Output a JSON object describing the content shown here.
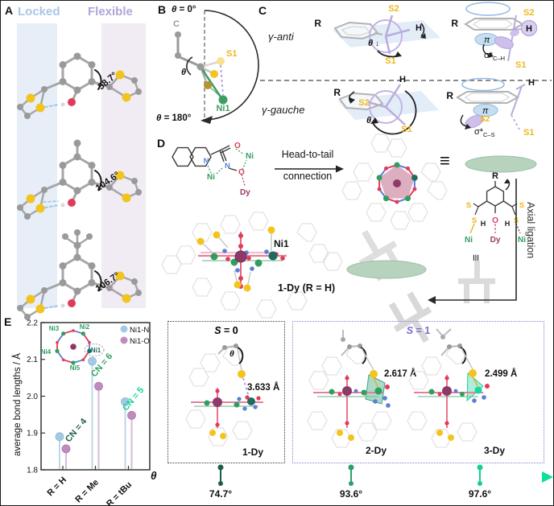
{
  "panelA": {
    "label": "A",
    "locked": "Locked",
    "flexible": "Flexible",
    "angles": [
      "58.7°",
      "104.6°",
      "106.7°"
    ],
    "locked_color": "#a9c6e8",
    "flexible_color": "#b2a5d8"
  },
  "panelB": {
    "label": "B",
    "theta": "θ",
    "top": "= 0°",
    "bottom": "= 180°",
    "carbon": "C",
    "s1": "S1",
    "ni1": "Ni1"
  },
  "panelC": {
    "label": "C",
    "anti": "γ-anti",
    "gauche": "γ-gauche",
    "r": "R",
    "s1": "S1",
    "s2": "S2",
    "h": "H",
    "theta": "θ",
    "down": "↓",
    "up": "↑",
    "pi": "π",
    "sigma": "σ*",
    "ch": "C–H",
    "cs": "C–S"
  },
  "panelD": {
    "label": "D",
    "head1": "Head-to-tail",
    "head2": "connection",
    "equiv": "≡",
    "axial": "Axial ligation",
    "ni1": "Ni1",
    "compound": "1-Dy (R = H)",
    "n": "N",
    "o": "O",
    "ni": "Ni",
    "dy": "Dy",
    "r": "R",
    "s": "S",
    "h": "H"
  },
  "panelE": {
    "label": "E",
    "ylabel": "average bond lengths / Å",
    "yticks": [
      "2.2",
      "2.1",
      "2.0",
      "1.9",
      "1.8"
    ],
    "xlabels": [
      "R = H",
      "R = Me",
      "R = tBu"
    ],
    "legend": [
      {
        "label": "Ni1-N",
        "color": "#a5c9e5"
      },
      {
        "label": "Ni1-O",
        "color": "#bf8cbf"
      }
    ],
    "cn": [
      {
        "text": "CN = 4",
        "color": "#1d6048"
      },
      {
        "text": "CN = 6",
        "color": "#2fa060"
      },
      {
        "text": "CN = 5",
        "color": "#16d39a"
      }
    ],
    "inset": {
      "ni1": "Ni1",
      "ni2": "Ni2",
      "ni3": "Ni3",
      "ni4": "Ni4",
      "ni5": "Ni5"
    }
  },
  "boxes": {
    "s0": {
      "s": "S",
      "val": " = 0",
      "theta": "θ",
      "distance": "3.633 Å",
      "name": "1-Dy"
    },
    "s1": {
      "s": "S",
      "val": " = 1",
      "accent": "#7a6bd0",
      "left": {
        "name": "2-Dy",
        "distance": "2.617 Å"
      },
      "right": {
        "name": "3-Dy",
        "distance": "2.499 Å"
      }
    }
  },
  "theta_axis": {
    "symbol": "θ",
    "ticks": [
      "74.7°",
      "93.6°",
      "97.6°"
    ]
  },
  "chart_data": [
    {
      "type": "scatter",
      "title": "",
      "categories": [
        "R = H",
        "R = Me",
        "R = tBu"
      ],
      "series": [
        {
          "name": "Ni1-N",
          "values": [
            1.89,
            2.095,
            1.985
          ],
          "color": "#a5c9e5"
        },
        {
          "name": "Ni1-O",
          "values": [
            1.857,
            2.027,
            1.948
          ],
          "color": "#bf8cbf"
        }
      ],
      "ylabel": "average bond lengths / Å",
      "ylim": [
        1.8,
        2.2
      ],
      "yticks": [
        1.8,
        1.9,
        2.0,
        2.1,
        2.2
      ],
      "annotations": [
        "CN = 4",
        "CN = 6",
        "CN = 5"
      ],
      "legend_position": "upper right",
      "grid": false
    },
    {
      "type": "line",
      "axis_label": "θ",
      "ticks_deg": [
        74.7,
        93.6,
        97.6
      ],
      "tick_labels": [
        "74.7°",
        "93.6°",
        "97.6°"
      ],
      "gradient": [
        "#185a49",
        "#0ce09e"
      ],
      "compounds": [
        "1-Dy",
        "2-Dy",
        "3-Dy"
      ]
    }
  ]
}
